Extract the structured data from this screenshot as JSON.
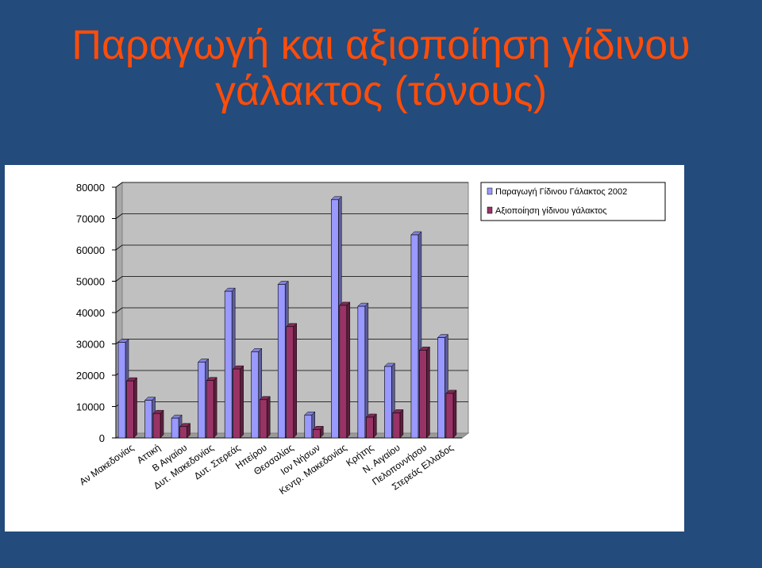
{
  "slide": {
    "title_line1": "Παραγωγή και αξιοποίηση γίδινου",
    "title_line2": "γάλακτος (τόνους)",
    "background_color": "#234b7c",
    "title_color": "#ff4d0a"
  },
  "chart_data": {
    "type": "bar",
    "title": "",
    "xlabel": "",
    "ylabel": "",
    "ylim": [
      0,
      80000
    ],
    "yticks": [
      0,
      10000,
      20000,
      30000,
      40000,
      50000,
      60000,
      70000,
      80000
    ],
    "grid": true,
    "legend_position": "top-right",
    "categories": [
      "Αν Μακεδονίας",
      "Αττική",
      "Β Αιγαίου",
      "Δυτ. Μακεδονίας",
      "Δυτ. Στερεάς",
      "Ηπείρου",
      "Θεσσαλίας",
      "Ιον Νήσων",
      "Κεντρ. Μακεδονίας",
      "Κρήτης",
      "Ν. Αιγαίου",
      "Πελοποννήσου",
      "Στερεάς Ελλαδος"
    ],
    "series": [
      {
        "name": "Παραγωγή Γίδινου Γάλακτος 2002",
        "color": "#9999ff",
        "values": [
          30500,
          12000,
          6300,
          24200,
          46800,
          27500,
          49000,
          7300,
          76000,
          42000,
          22800,
          64800,
          32000
        ]
      },
      {
        "name": "Αξιοποίηση γίδινου γάλακτος",
        "color": "#993366",
        "values": [
          18200,
          7800,
          3600,
          18300,
          22000,
          12200,
          35500,
          2700,
          42300,
          6600,
          8000,
          28000,
          14200
        ]
      }
    ]
  }
}
